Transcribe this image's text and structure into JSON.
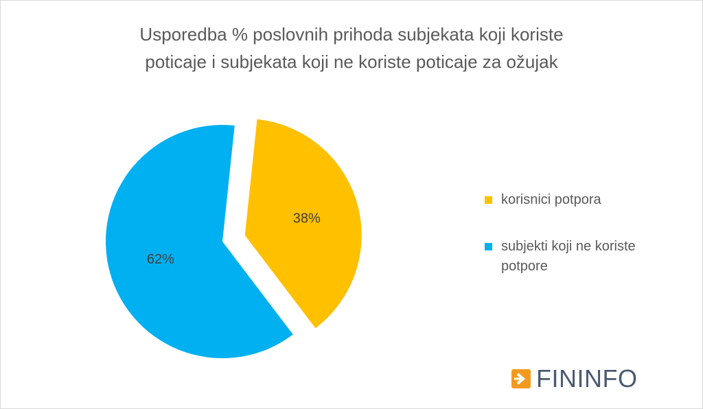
{
  "chart_data": {
    "type": "pie",
    "title": "Usporedba % poslovnih prihoda subjekata koji koriste poticaje i subjekata koji ne koriste poticaje za ožujak",
    "title_lines": [
      "Usporedba % poslovnih prihoda subjekata koji koriste",
      "poticaje i subjekata koji ne koriste poticaje za ožujak"
    ],
    "categories": [
      "korisnici potpora",
      "subjekti koji ne koriste potpore"
    ],
    "values": [
      38,
      62
    ],
    "data_labels": [
      "38%",
      "62%"
    ],
    "colors": [
      "#ffc000",
      "#00b0f0"
    ],
    "exploded": [
      true,
      false
    ],
    "legend_placement": "right"
  },
  "legend": {
    "items": [
      {
        "label": "korisnici potpora",
        "color": "#ffc000"
      },
      {
        "label": "subjekti koji ne koriste potpore",
        "color": "#00b0f0"
      }
    ]
  },
  "brand": {
    "logo_text": "FININFO",
    "logo_icon": "chevron-right-icon",
    "colors": {
      "icon": "#f29a1f",
      "text": "#4a5a73"
    }
  }
}
